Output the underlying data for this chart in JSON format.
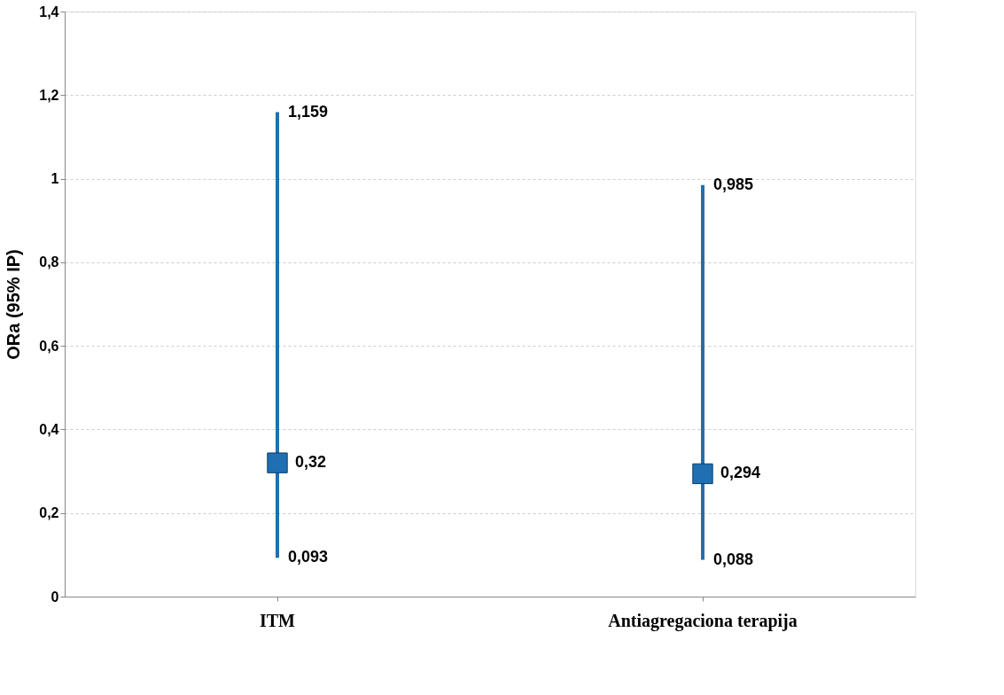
{
  "chart_data": {
    "type": "scatter",
    "ylabel": "ORa (95% IP)",
    "categories": [
      "ITM",
      "Antiagregaciona terapija"
    ],
    "series": [
      {
        "color": "#1f6fb2",
        "values": [
          0.32,
          0.294
        ],
        "errors": [
          [
            0.093,
            1.159
          ],
          [
            0.088,
            0.985
          ]
        ],
        "value_labels": [
          "0,32",
          "0,294"
        ]
      }
    ],
    "ylim": [
      0,
      1.4
    ],
    "yticks": [
      0,
      {
        "value": 0.2,
        "label": "0,2"
      },
      {
        "value": 0.4,
        "label": "0,4"
      },
      {
        "value": 0.6,
        "label": "0,6"
      },
      {
        "value": 0.8,
        "label": "0,8"
      },
      1,
      {
        "value": 1.2,
        "label": "1,2"
      },
      {
        "value": 1.4,
        "label": "1,4"
      }
    ],
    "annotations": [
      {
        "text": "1,159",
        "x": "ITM",
        "y": 1.159
      },
      {
        "text": "0,093",
        "x": "ITM",
        "y": 0.093
      },
      {
        "text": "0,985",
        "x": "Antiagregaciona terapija",
        "y": 0.985
      },
      {
        "text": "0,088",
        "x": "Antiagregaciona terapija",
        "y": 0.088
      }
    ],
    "grid": "y",
    "marker": "square"
  }
}
